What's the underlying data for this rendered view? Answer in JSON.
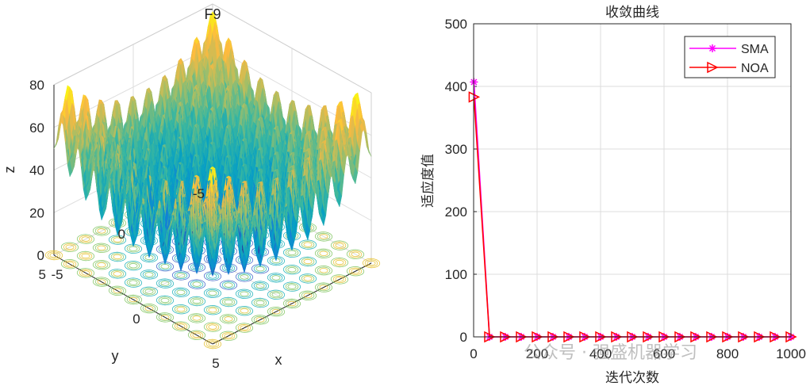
{
  "chart_data": [
    {
      "type": "surface3d",
      "title": "F9",
      "xlabel": "x",
      "ylabel": "y",
      "zlabel": "z",
      "xlim": [
        -5,
        5
      ],
      "ylim": [
        -5,
        5
      ],
      "zlim": [
        0,
        80
      ],
      "x_ticks": [
        "-5",
        "0",
        "5"
      ],
      "y_ticks": [
        "-5",
        "0",
        "5"
      ],
      "z_ticks": [
        "0",
        "20",
        "40",
        "60",
        "80"
      ],
      "function": "Rastrigin: z = sum(x_i^2 - 10*cos(2*pi*x_i) + 10)",
      "colormap": "parula",
      "contour_below": true
    },
    {
      "type": "line",
      "title": "收敛曲线",
      "xlabel": "迭代次数",
      "ylabel": "适应度值",
      "xlim": [
        0,
        1000
      ],
      "ylim": [
        0,
        500
      ],
      "x_ticks": [
        "0",
        "200",
        "400",
        "600",
        "800",
        "1000"
      ],
      "y_ticks": [
        "0",
        "100",
        "200",
        "300",
        "400",
        "500"
      ],
      "grid": true,
      "legend_position": "top-right",
      "series": [
        {
          "name": "SMA",
          "color": "#ff00ff",
          "marker": "asterisk",
          "x": [
            1,
            50,
            100,
            150,
            200,
            250,
            300,
            350,
            400,
            450,
            500,
            550,
            600,
            650,
            700,
            750,
            800,
            850,
            900,
            950,
            1000
          ],
          "y": [
            407,
            0,
            0,
            0,
            0,
            0,
            0,
            0,
            0,
            0,
            0,
            0,
            0,
            0,
            0,
            0,
            0,
            0,
            0,
            0,
            0
          ]
        },
        {
          "name": "NOA",
          "color": "#ff0000",
          "marker": "triangle-right",
          "x": [
            1,
            50,
            100,
            150,
            200,
            250,
            300,
            350,
            400,
            450,
            500,
            550,
            600,
            650,
            700,
            750,
            800,
            850,
            900,
            950,
            1000
          ],
          "y": [
            383,
            0,
            0,
            0,
            0,
            0,
            0,
            0,
            0,
            0,
            0,
            0,
            0,
            0,
            0,
            0,
            0,
            0,
            0,
            0,
            0
          ]
        }
      ]
    }
  ],
  "watermark": "公众号 · 强盛机器学习"
}
